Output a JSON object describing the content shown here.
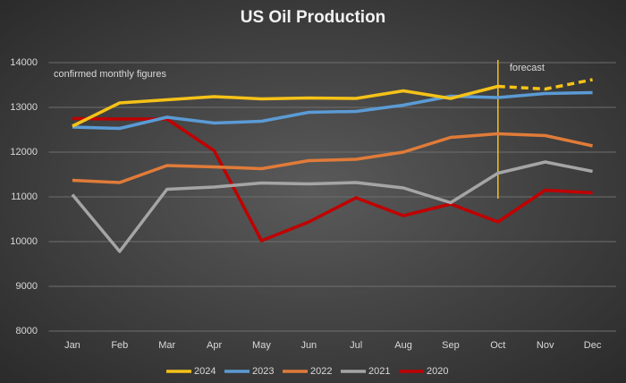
{
  "chart_data": {
    "type": "line",
    "title": "US Oil Production",
    "categories": [
      "Jan",
      "Feb",
      "Mar",
      "Apr",
      "May",
      "Jun",
      "Jul",
      "Aug",
      "Sep",
      "Oct",
      "Nov",
      "Dec"
    ],
    "series": [
      {
        "name": "2024",
        "color": "#f5c218",
        "values": [
          12580,
          13100,
          13170,
          13240,
          13190,
          13210,
          13200,
          13370,
          13200,
          13470,
          13410,
          13620
        ]
      },
      {
        "name": "2023",
        "color": "#5b9bd5",
        "values": [
          12560,
          12530,
          12780,
          12650,
          12690,
          12890,
          12910,
          13050,
          13250,
          13220,
          13310,
          13330
        ]
      },
      {
        "name": "2022",
        "color": "#e07b39",
        "values": [
          11370,
          11320,
          11700,
          11670,
          11630,
          11810,
          11840,
          12000,
          12330,
          12410,
          12370,
          12140
        ]
      },
      {
        "name": "2021",
        "color": "#a5a5a5",
        "values": [
          11050,
          9780,
          11170,
          11220,
          11310,
          11290,
          11320,
          11200,
          10870,
          11530,
          11780,
          11570
        ]
      },
      {
        "name": "2020",
        "color": "#c00000",
        "values": [
          12750,
          12740,
          12740,
          12030,
          10020,
          10440,
          10980,
          10580,
          10840,
          10440,
          11150,
          11090
        ]
      }
    ],
    "ylim": [
      8000,
      14000
    ],
    "yticks": [
      8000,
      9000,
      10000,
      11000,
      12000,
      13000,
      14000
    ],
    "grid": true,
    "annotations": [
      {
        "text": "confirmed monthly figures"
      },
      {
        "text": "forecast",
        "x": "Oct",
        "color": "#f5c218"
      }
    ],
    "legend": "bottom"
  }
}
